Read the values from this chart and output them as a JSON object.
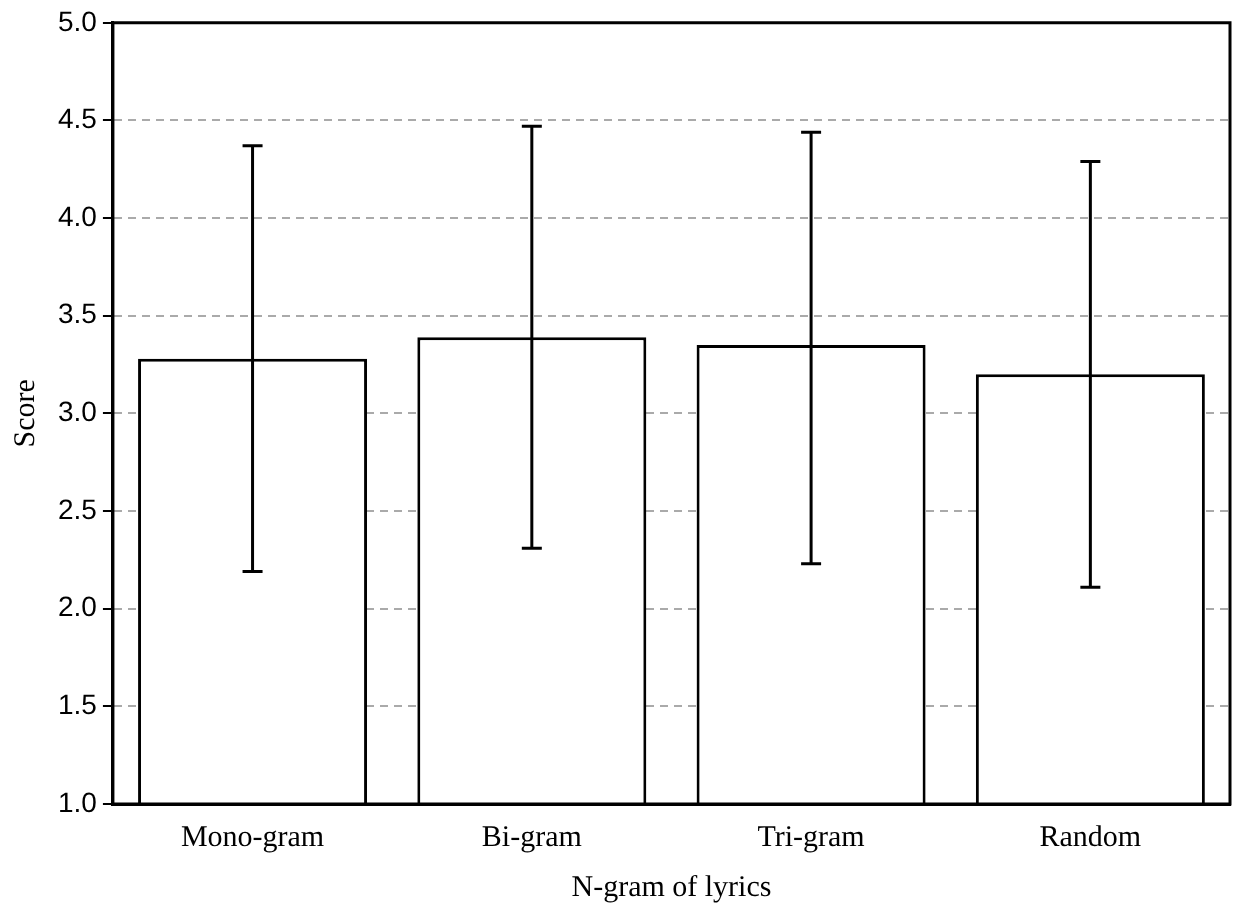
{
  "chart_data": {
    "type": "bar",
    "xlabel": "N-gram of lyrics",
    "ylabel": "Score",
    "categories": [
      "Mono-gram",
      "Bi-gram",
      "Tri-gram",
      "Random"
    ],
    "values": [
      3.28,
      3.39,
      3.35,
      3.2
    ],
    "errors": [
      1.09,
      1.08,
      [
        2.23,
        4.44
      ],
      1.09
    ],
    "color": "#ffffff",
    "ylim": [
      1.0,
      5.0
    ],
    "yticks": [
      {
        "value": 1,
        "label": "1.0"
      },
      {
        "value": 1.5,
        "label": "1.5"
      },
      {
        "value": 2,
        "label": "2.0"
      },
      {
        "value": 2.5,
        "label": "2.5"
      },
      {
        "value": 3,
        "label": "3.0"
      },
      {
        "value": 3.5,
        "label": "3.5"
      },
      {
        "value": 4,
        "label": "4.0"
      },
      {
        "value": 4.5,
        "label": "4.5"
      },
      {
        "value": 5,
        "label": "5.0"
      }
    ],
    "grid": "y",
    "legend": false
  }
}
